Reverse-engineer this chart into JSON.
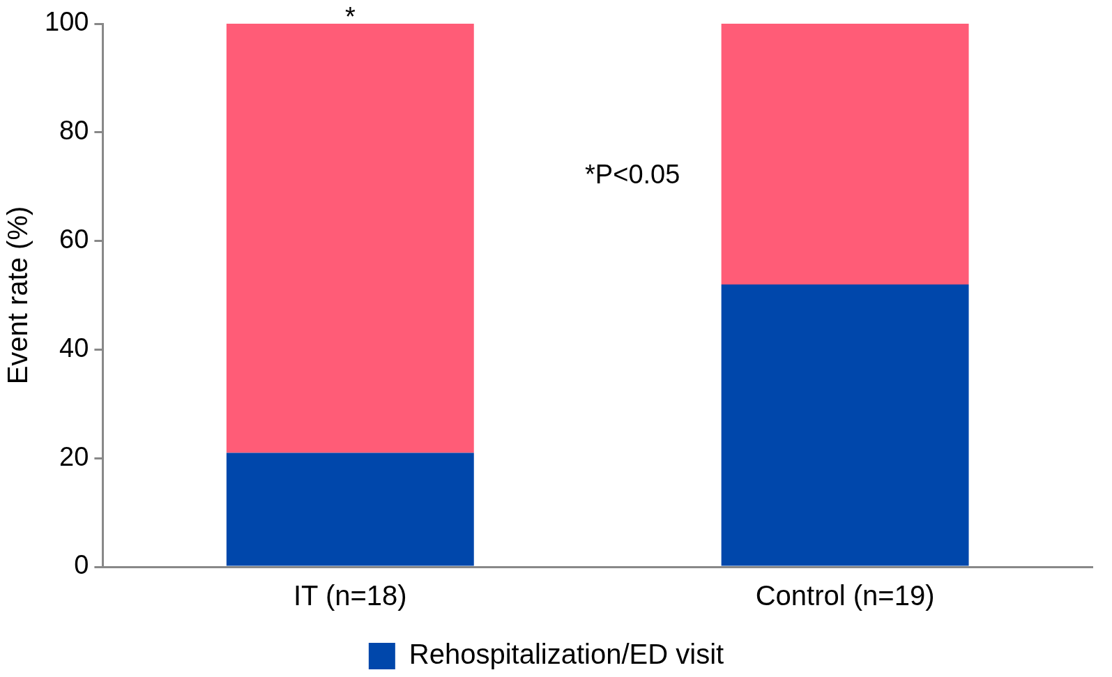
{
  "chart_data": {
    "type": "bar",
    "stacked": true,
    "ylabel": "Event rate (%)",
    "categories": [
      "IT (n=18)",
      "Control (n=19)"
    ],
    "series": [
      {
        "name": "Rehospitalization/ED visit",
        "color": "#0047ab",
        "values": [
          21,
          52
        ]
      },
      {
        "color": "#ff5c77",
        "values": [
          79,
          48
        ]
      }
    ],
    "ylim": [
      0,
      100
    ],
    "yticks": [
      0,
      20,
      40,
      60,
      80,
      100
    ],
    "grid": false,
    "legend": "bottom",
    "annotations": [
      {
        "text": "*",
        "x": "IT (n=18)",
        "y": 100
      },
      "*P<0.05"
    ]
  }
}
